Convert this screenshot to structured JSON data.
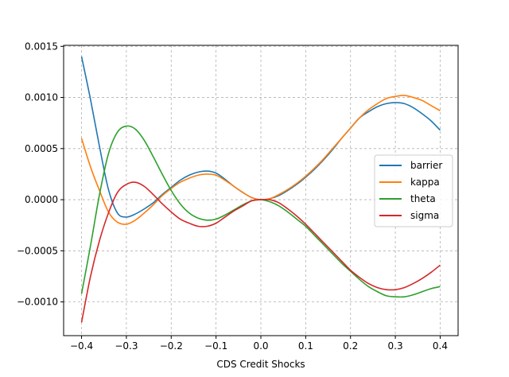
{
  "chart_data": {
    "type": "line",
    "title": "",
    "xlabel": "CDS Credit Shocks",
    "ylabel": "",
    "xlim": [
      -0.44,
      0.44
    ],
    "ylim": [
      -0.00133,
      0.00151
    ],
    "xticks": [
      -0.4,
      -0.3,
      -0.2,
      -0.1,
      0.0,
      0.1,
      0.2,
      0.3,
      0.4
    ],
    "xtick_labels": [
      "−0.4",
      "−0.3",
      "−0.2",
      "−0.1",
      "0.0",
      "0.1",
      "0.2",
      "0.3",
      "0.4"
    ],
    "yticks": [
      -0.001,
      -0.0005,
      0.0,
      0.0005,
      0.001,
      0.0015
    ],
    "ytick_labels": [
      "−0.0010",
      "−0.0005",
      "0.0000",
      "0.0005",
      "0.0010",
      "0.0015"
    ],
    "grid": true,
    "legend_position": "center-right",
    "series": [
      {
        "name": "barrier",
        "color": "#1f77b4",
        "x": [
          -0.4,
          -0.38,
          -0.36,
          -0.34,
          -0.32,
          -0.3,
          -0.28,
          -0.26,
          -0.24,
          -0.22,
          -0.2,
          -0.18,
          -0.16,
          -0.14,
          -0.12,
          -0.1,
          -0.08,
          -0.06,
          -0.04,
          -0.02,
          0.0,
          0.02,
          0.04,
          0.06,
          0.08,
          0.1,
          0.12,
          0.14,
          0.16,
          0.18,
          0.2,
          0.22,
          0.24,
          0.26,
          0.28,
          0.3,
          0.32,
          0.34,
          0.36,
          0.38,
          0.4
        ],
        "values": [
          0.0014,
          0.00098,
          0.00052,
          0.0001,
          -0.00013,
          -0.00017,
          -0.00014,
          -9e-05,
          -3e-05,
          5e-05,
          0.00012,
          0.00019,
          0.00024,
          0.00027,
          0.00028,
          0.00026,
          0.0002,
          0.00013,
          7e-05,
          2e-05,
          0.0,
          1e-05,
          4e-05,
          9e-05,
          0.00015,
          0.00022,
          0.0003,
          0.00039,
          0.00049,
          0.0006,
          0.0007,
          0.0008,
          0.00086,
          0.00091,
          0.00094,
          0.00095,
          0.00094,
          0.0009,
          0.00084,
          0.00077,
          0.00068
        ]
      },
      {
        "name": "kappa",
        "color": "#ff7f0e",
        "x": [
          -0.4,
          -0.38,
          -0.36,
          -0.34,
          -0.32,
          -0.3,
          -0.28,
          -0.26,
          -0.24,
          -0.22,
          -0.2,
          -0.18,
          -0.16,
          -0.14,
          -0.12,
          -0.1,
          -0.08,
          -0.06,
          -0.04,
          -0.02,
          0.0,
          0.02,
          0.04,
          0.06,
          0.08,
          0.1,
          0.12,
          0.14,
          0.16,
          0.18,
          0.2,
          0.22,
          0.24,
          0.26,
          0.28,
          0.3,
          0.32,
          0.34,
          0.36,
          0.38,
          0.4
        ],
        "values": [
          0.0006,
          0.00032,
          9e-05,
          -0.00012,
          -0.00022,
          -0.00024,
          -0.0002,
          -0.00013,
          -5e-05,
          4e-05,
          0.00011,
          0.00017,
          0.00021,
          0.00024,
          0.00025,
          0.00024,
          0.00019,
          0.00013,
          7e-05,
          2e-05,
          0.0,
          1e-05,
          5e-05,
          0.0001,
          0.00016,
          0.00023,
          0.00031,
          0.0004,
          0.0005,
          0.0006,
          0.0007,
          0.0008,
          0.00088,
          0.00094,
          0.00099,
          0.00101,
          0.00102,
          0.001,
          0.00097,
          0.00092,
          0.00087
        ]
      },
      {
        "name": "theta",
        "color": "#2ca02c",
        "x": [
          -0.4,
          -0.38,
          -0.36,
          -0.34,
          -0.32,
          -0.3,
          -0.28,
          -0.26,
          -0.24,
          -0.22,
          -0.2,
          -0.18,
          -0.16,
          -0.14,
          -0.12,
          -0.1,
          -0.08,
          -0.06,
          -0.04,
          -0.02,
          0.0,
          0.02,
          0.04,
          0.06,
          0.08,
          0.1,
          0.12,
          0.14,
          0.16,
          0.18,
          0.2,
          0.22,
          0.24,
          0.26,
          0.28,
          0.3,
          0.32,
          0.34,
          0.36,
          0.38,
          0.4
        ],
        "values": [
          -0.00092,
          -0.00045,
          5e-05,
          0.00045,
          0.00066,
          0.00072,
          0.00069,
          0.00058,
          0.00042,
          0.00025,
          9e-05,
          -4e-05,
          -0.00013,
          -0.00018,
          -0.0002,
          -0.00019,
          -0.00015,
          -0.0001,
          -5e-05,
          -1e-05,
          0.0,
          -2e-05,
          -6e-05,
          -0.00012,
          -0.00019,
          -0.00026,
          -0.00035,
          -0.00044,
          -0.00053,
          -0.00062,
          -0.0007,
          -0.00078,
          -0.00085,
          -0.0009,
          -0.00094,
          -0.00095,
          -0.00095,
          -0.00093,
          -0.0009,
          -0.00087,
          -0.00085
        ]
      },
      {
        "name": "sigma",
        "color": "#d62728",
        "x": [
          -0.4,
          -0.38,
          -0.36,
          -0.34,
          -0.32,
          -0.3,
          -0.28,
          -0.26,
          -0.24,
          -0.22,
          -0.2,
          -0.18,
          -0.16,
          -0.14,
          -0.12,
          -0.1,
          -0.08,
          -0.06,
          -0.04,
          -0.02,
          0.0,
          0.02,
          0.04,
          0.06,
          0.08,
          0.1,
          0.12,
          0.14,
          0.16,
          0.18,
          0.2,
          0.22,
          0.24,
          0.26,
          0.28,
          0.3,
          0.32,
          0.34,
          0.36,
          0.38,
          0.4
        ],
        "values": [
          -0.0012,
          -0.00075,
          -0.0004,
          -0.00013,
          7e-05,
          0.00015,
          0.00017,
          0.00013,
          5e-05,
          -4e-05,
          -0.00012,
          -0.00019,
          -0.00023,
          -0.00026,
          -0.00026,
          -0.00023,
          -0.00017,
          -0.00011,
          -6e-05,
          -1e-05,
          0.0,
          0.0,
          -3e-05,
          -9e-05,
          -0.00016,
          -0.00024,
          -0.00033,
          -0.00042,
          -0.00051,
          -0.0006,
          -0.00069,
          -0.00076,
          -0.00082,
          -0.00086,
          -0.00088,
          -0.00088,
          -0.00086,
          -0.00082,
          -0.00077,
          -0.00071,
          -0.00064
        ]
      }
    ]
  }
}
